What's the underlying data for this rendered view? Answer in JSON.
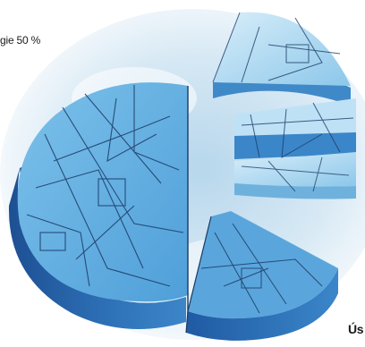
{
  "labels": {
    "top_fragment": "gie 50 %",
    "bottom_fragment": "Ús"
  },
  "colors": {
    "sky_light": "#ffffff",
    "sky_blue": "#cfe4f2",
    "slice_top": "#6bb5e6",
    "slice_side": "#2d6fb7",
    "slice_side_dark": "#1d4f93",
    "light_slice_top": "#a9d6f0",
    "line": "#1b3a66"
  }
}
